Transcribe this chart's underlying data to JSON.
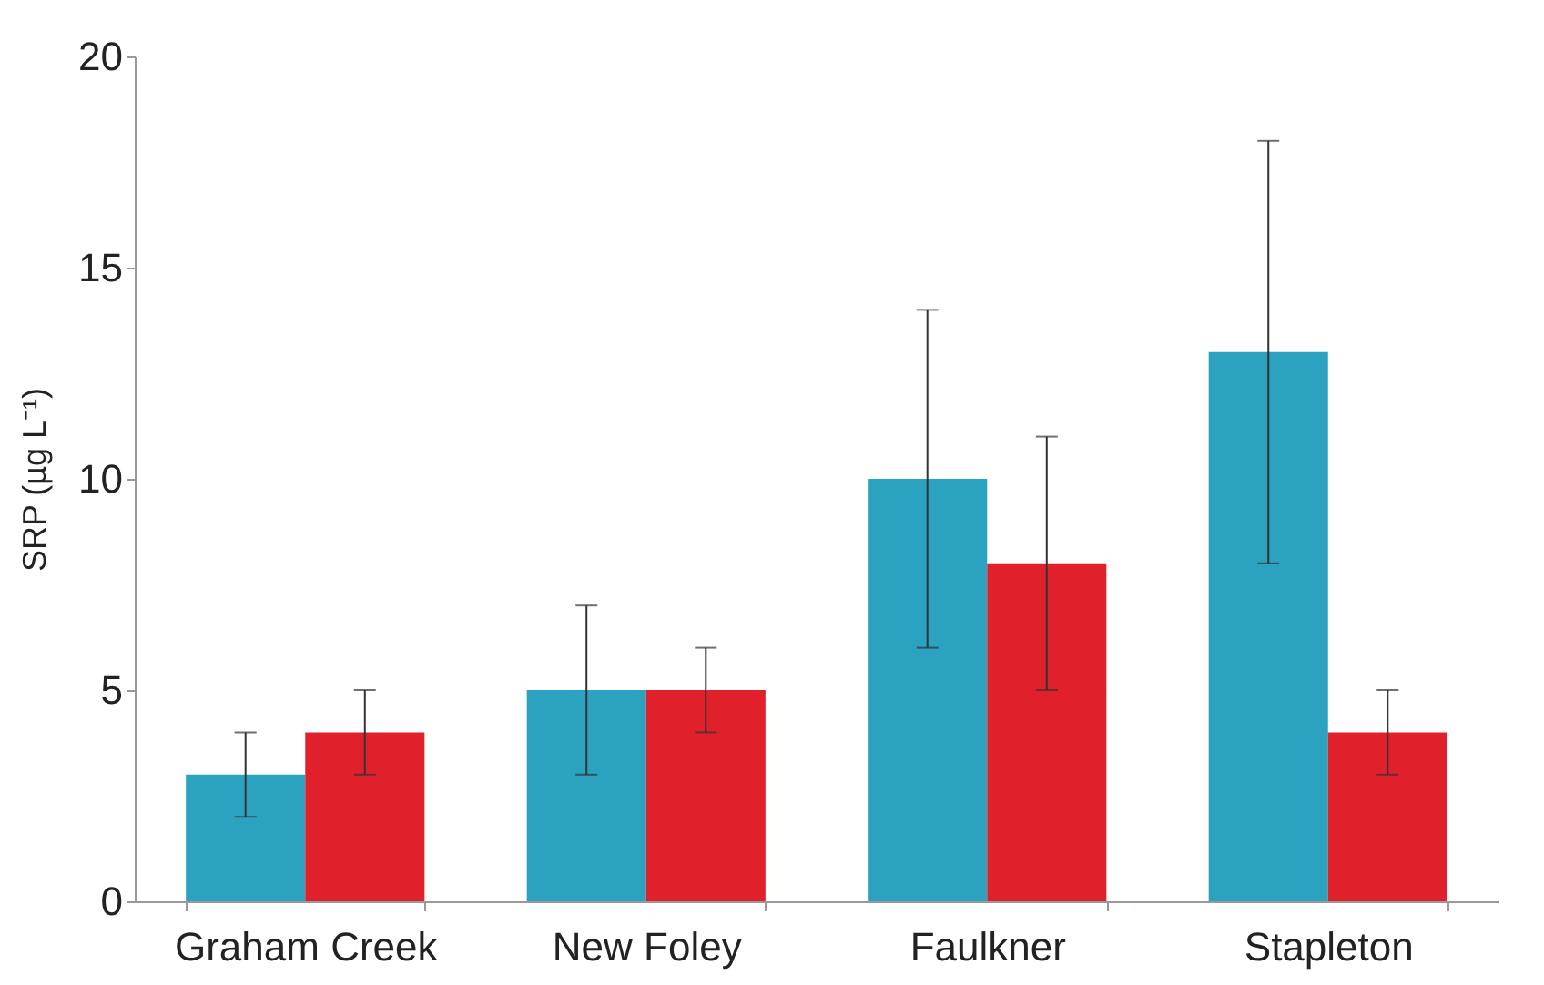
{
  "chart_data": {
    "type": "bar",
    "ylabel": "SRP (µg L⁻¹)",
    "categories": [
      "Graham Creek",
      "New Foley",
      "Faulkner",
      "Stapleton"
    ],
    "series": [
      {
        "color": "#2ba3c0",
        "values": [
          3,
          5,
          10,
          13
        ],
        "errors": [
          1,
          2,
          4,
          5
        ]
      },
      {
        "color": "#e0202a",
        "values": [
          4,
          5,
          8,
          4
        ],
        "errors": [
          1,
          1,
          3,
          1
        ]
      }
    ],
    "ylim": [
      0,
      20
    ],
    "yticks": [
      0,
      5,
      10,
      15,
      20
    ],
    "grid": false
  }
}
